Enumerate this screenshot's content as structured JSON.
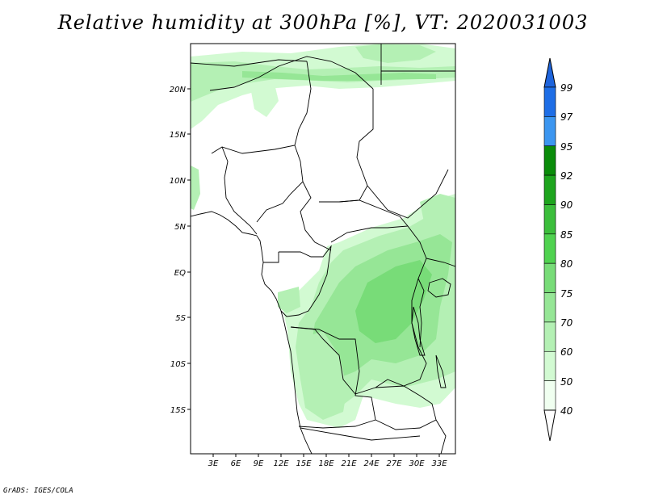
{
  "title": "Relative humidity at 300hPa [%], VT: 2020031003",
  "credit": "GrADS: IGES/COLA",
  "map": {
    "variable": "Relative humidity at 300hPa",
    "units": "%",
    "valid_time": "2020031003",
    "lat_labels": [
      "20N",
      "15N",
      "10N",
      "5N",
      "EQ",
      "5S",
      "10S",
      "15S"
    ],
    "lon_labels": [
      "3E",
      "6E",
      "9E",
      "12E",
      "15E",
      "18E",
      "21E",
      "24E",
      "27E",
      "30E",
      "33E"
    ]
  },
  "colorbar": {
    "levels": [
      "99",
      "97",
      "95",
      "92",
      "90",
      "85",
      "80",
      "75",
      "70",
      "60",
      "50",
      "40"
    ],
    "colors": [
      "#1e64dc",
      "#1e6ee6",
      "#3c96f0",
      "#0a8c0a",
      "#1ea51e",
      "#3cbe3c",
      "#50d250",
      "#78dc78",
      "#96e696",
      "#b4f0b4",
      "#d2fad2",
      "#f0fff0"
    ]
  }
}
